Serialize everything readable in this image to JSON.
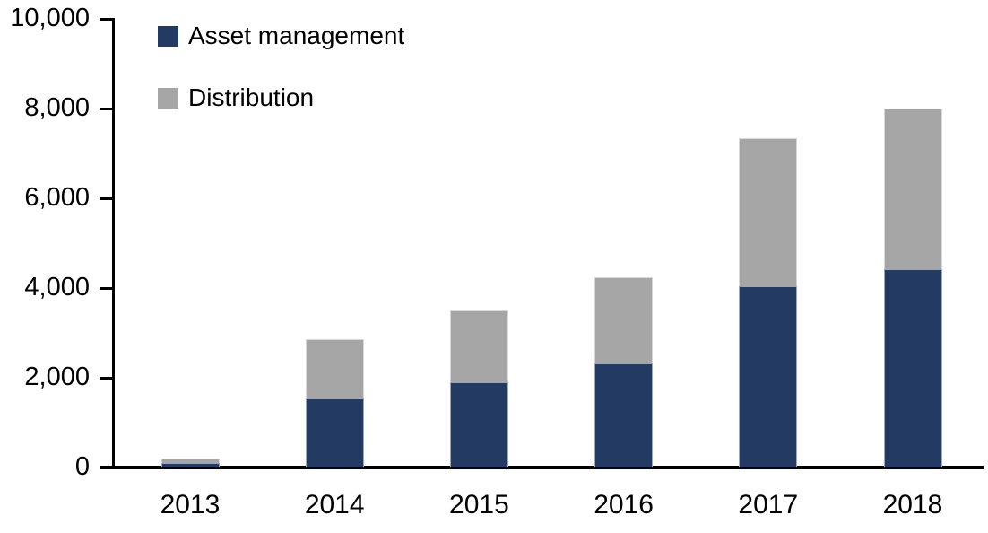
{
  "chart_data": {
    "type": "bar",
    "stacked": true,
    "title": "",
    "xlabel": "",
    "ylabel": "",
    "categories": [
      "2013",
      "2014",
      "2015",
      "2016",
      "2017",
      "2018"
    ],
    "series": [
      {
        "name": "Asset management",
        "color": "#233A63",
        "values": [
          100,
          1550,
          1900,
          2320,
          4050,
          4420
        ]
      },
      {
        "name": "Distribution",
        "color": "#A6A6A6",
        "values": [
          100,
          1320,
          1600,
          1930,
          3300,
          3580
        ]
      }
    ],
    "totals": [
      200,
      2870,
      3500,
      4250,
      7350,
      8000
    ],
    "ylim": [
      0,
      10000
    ],
    "yticks": [
      0,
      2000,
      4000,
      6000,
      8000,
      10000
    ],
    "ytick_labels": [
      "0",
      "2,000",
      "4,000",
      "6,000",
      "8,000",
      "10,000"
    ],
    "grid": false,
    "legend_position": "top-left",
    "axis_color": "#000000",
    "background_color": "#FFFFFF"
  }
}
